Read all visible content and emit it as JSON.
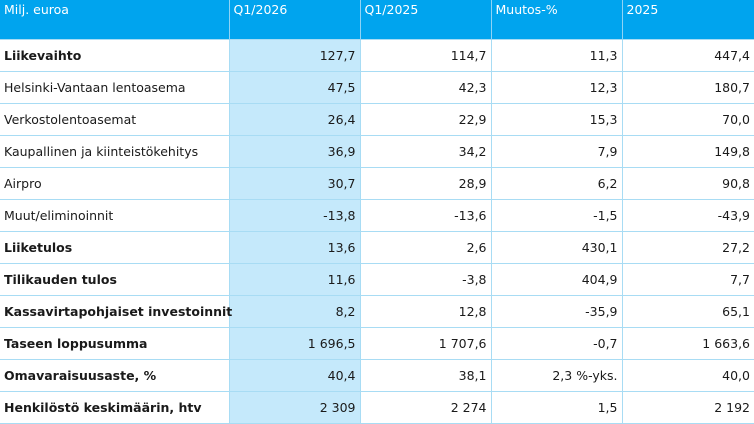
{
  "header": [
    "Milj. euroa",
    "Q1/2026",
    "Q1/2025",
    "Muutos-%",
    "2025"
  ],
  "rows": [
    {
      "label": "Liikevaihto",
      "bold": true,
      "values": [
        "127,7",
        "114,7",
        "11,3",
        "447,4"
      ]
    },
    {
      "label": "Helsinki-Vantaan lentoasema",
      "bold": false,
      "values": [
        "47,5",
        "42,3",
        "12,3",
        "180,7"
      ]
    },
    {
      "label": "Verkostolentoasemat",
      "bold": false,
      "values": [
        "26,4",
        "22,9",
        "15,3",
        "70,0"
      ]
    },
    {
      "label": "Kaupallinen ja kiinteistökehitys",
      "bold": false,
      "values": [
        "36,9",
        "34,2",
        "7,9",
        "149,8"
      ]
    },
    {
      "label": "Airpro",
      "bold": false,
      "values": [
        "30,7",
        "28,9",
        "6,2",
        "90,8"
      ]
    },
    {
      "label": "Muut/eliminoinnit",
      "bold": false,
      "values": [
        "-13,8",
        "-13,6",
        "-1,5",
        "-43,9"
      ]
    },
    {
      "label": "Liiketulos",
      "bold": true,
      "values": [
        "13,6",
        "2,6",
        "430,1",
        "27,2"
      ]
    },
    {
      "label": "Tilikauden tulos",
      "bold": true,
      "values": [
        "11,6",
        "-3,8",
        "404,9",
        "7,7"
      ]
    },
    {
      "label": "Kassavirtapohjaiset investoinnit",
      "bold": true,
      "values": [
        "8,2",
        "12,8",
        "-35,9",
        "65,1"
      ]
    },
    {
      "label": "Taseen loppusumma",
      "bold": true,
      "values": [
        "1 696,5",
        "1 707,6",
        "-0,7",
        "1 663,6"
      ]
    },
    {
      "label": "Omavaraisuusaste, %",
      "bold": true,
      "values": [
        "40,4",
        "38,1",
        "2,3 %-yks.",
        "40,0"
      ]
    },
    {
      "label": "Henkilöstö keskimäärin, htv",
      "bold": true,
      "values": [
        "2 309",
        "2 274",
        "1,5",
        "2 192"
      ]
    }
  ]
}
